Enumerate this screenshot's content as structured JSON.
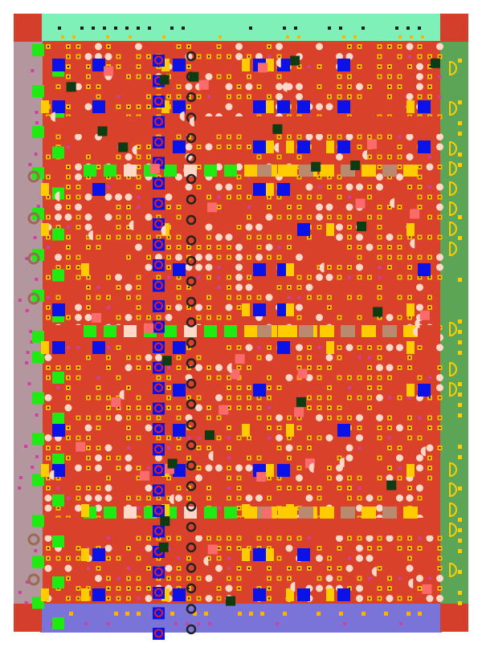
{
  "colors": {
    "background": "#ffffff",
    "field": "#d9412b",
    "top_band": "#7ff0b8",
    "left_band": "#b4969e",
    "right_band": "#5da556",
    "bottom_band": "#7b74d8",
    "corner": "#d33f2a",
    "green_tile": "#1fea12",
    "blue_tile": "#0a12e8",
    "yellow_tile": "#ffcc00",
    "tan_tile": "#b98a6e",
    "pink_tile": "#ffd8c8",
    "salmon_tile": "#fc6b6b",
    "dark_tile": "#0d3b12",
    "dot_orange": "#ffb400",
    "dot_dark": "#1a1a1a",
    "magenta_dot": "#d040a0",
    "ring_blue": "#2a35d8",
    "ring_red": "#e0202a",
    "ring_brown": "#9a6a52",
    "ring_dark": "#222222"
  },
  "icons": {
    "corner_block": "corner-block-icon",
    "green_square": "green-square-icon",
    "blue_square": "blue-square-icon",
    "target_ring": "target-ring-icon",
    "half_disc": "half-disc-icon",
    "yellow_d": "yellow-d-icon"
  }
}
